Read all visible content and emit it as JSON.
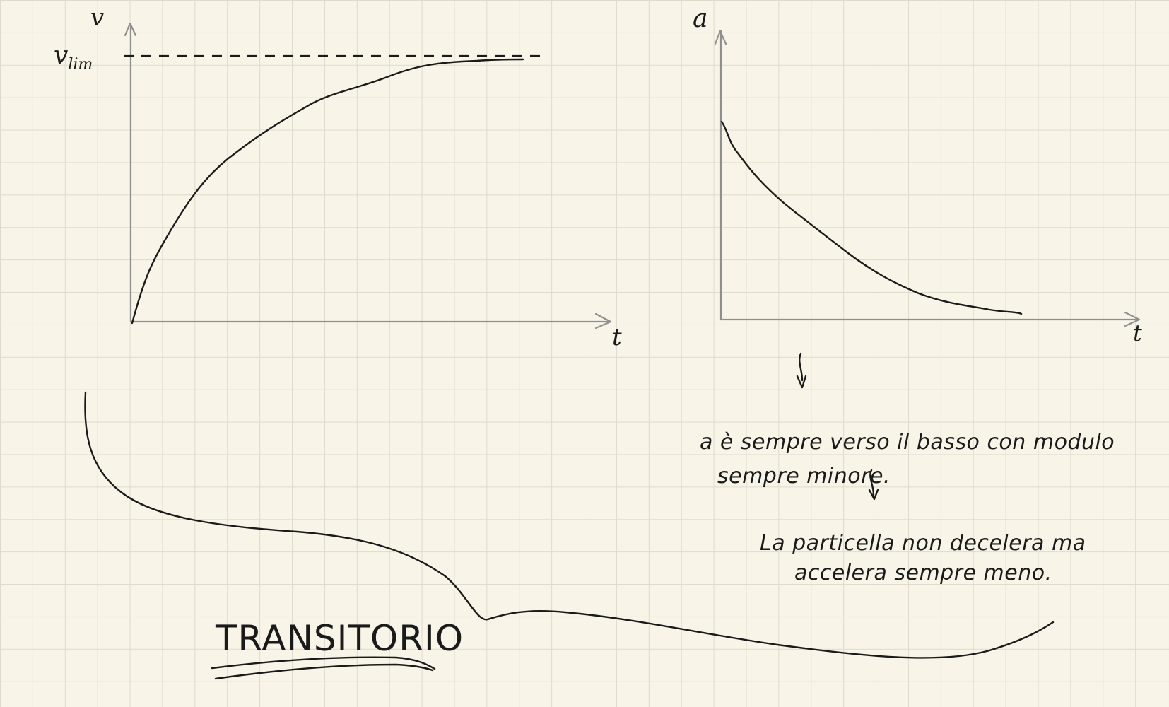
{
  "velocity_graph": {
    "y_label": "v",
    "limit_label": "v",
    "limit_subscript": "lim",
    "x_label": "t"
  },
  "acceleration_graph": {
    "y_label": "a",
    "x_label": "t"
  },
  "notes": {
    "line1": "a è sempre verso il basso con modulo",
    "line2": "sempre minore.",
    "line3": "La particella non decelera ma",
    "line4": "accelera sempre meno."
  },
  "title": "TRANSITORIO",
  "colors": {
    "ink": "#1a1a1a",
    "axis": "#8f8f8f",
    "paper": "#f8f5e8",
    "grid": "#dedbcd"
  }
}
